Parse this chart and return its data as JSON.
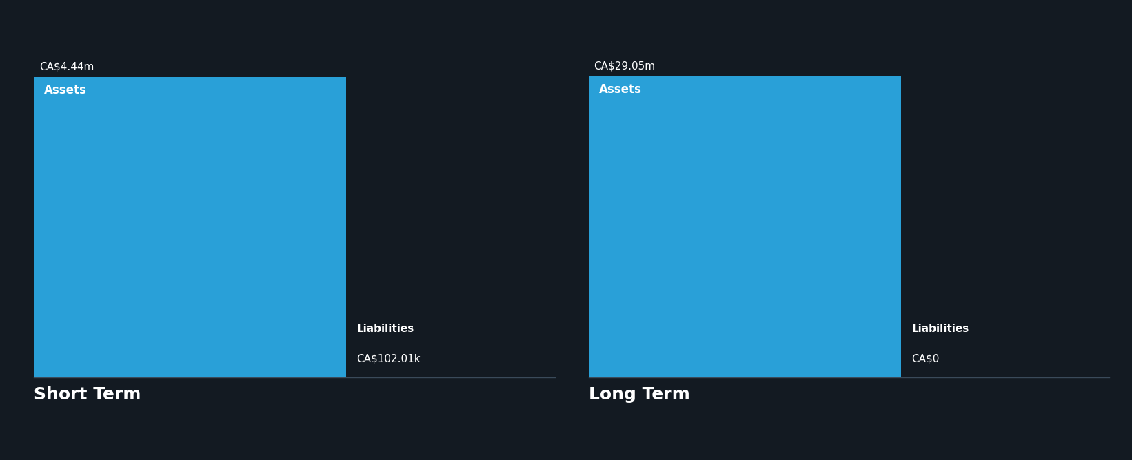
{
  "background_color": "#131a22",
  "bar_color": "#29a0d8",
  "text_color": "#ffffff",
  "sections": [
    {
      "title": "Short Term",
      "assets_value": 4.44,
      "assets_label": "CA$4.44m",
      "assets_inner_label": "Assets",
      "liabilities_value": 0.10201,
      "liabilities_label": "CA$102.01k",
      "liabilities_inner_label": "Liabilities",
      "y_max": 4.9
    },
    {
      "title": "Long Term",
      "assets_value": 29.05,
      "assets_label": "CA$29.05m",
      "assets_inner_label": "Assets",
      "liabilities_value": 0.0,
      "liabilities_label": "CA$0",
      "liabilities_inner_label": "Liabilities",
      "y_max": 32.0
    }
  ],
  "figsize": [
    16.42,
    6.68
  ],
  "dpi": 100
}
